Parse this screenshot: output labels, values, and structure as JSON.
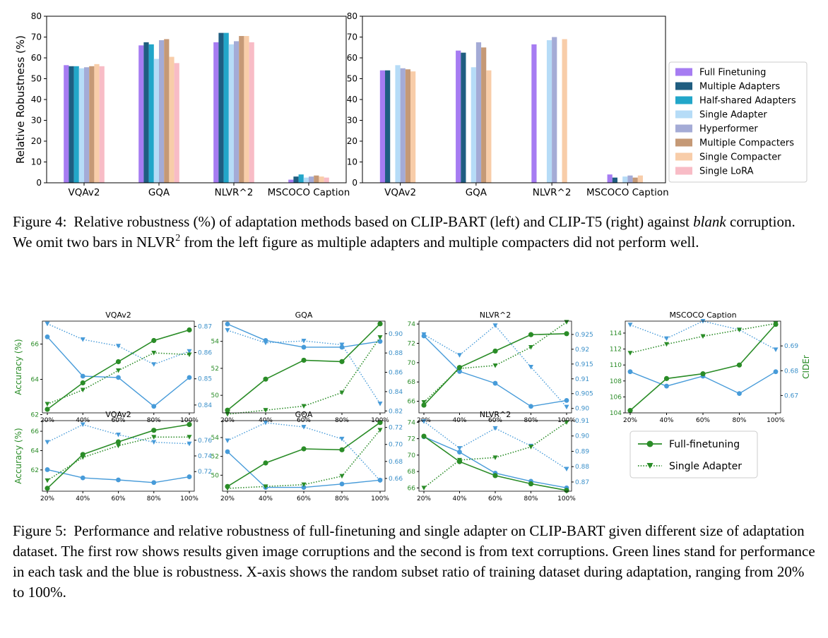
{
  "figure4": {
    "caption": {
      "label": "Figure 4:",
      "part1": "Relative robustness (%) of adaptation methods based on CLIP-BART (left) and CLIP-T5 (right) against ",
      "emph": "blank",
      "part2": " corruption. We omit two bars in NLVR",
      "sup": "2",
      "part3": " from the left figure as multiple adapters and multiple compacters did not perform well."
    }
  },
  "figure5": {
    "caption": {
      "label": "Figure 5:",
      "text": "Performance and relative robustness of full-finetuning and single adapter on CLIP-BART given different size of adaptation dataset. The first row shows results given image corruptions and the second is from text corruptions. Green lines stand for performance in each task and the blue is robustness. X-axis shows the random subset ratio of training dataset during adaptation, ranging from 20% to 100%."
    },
    "legend": [
      "Full-finetuning",
      "Single Adapter"
    ]
  },
  "chart_data": [
    {
      "id": "fig4-left",
      "type": "bar",
      "categories": [
        "VQAv2",
        "GQA",
        "NLVR^2",
        "MSCOCO Caption"
      ],
      "ylabel": "Relative Robustness (%)",
      "ylim": [
        0,
        80
      ],
      "yticks": [
        0,
        10,
        20,
        30,
        40,
        50,
        60,
        70,
        80
      ],
      "series": [
        {
          "name": "Full Finetuning",
          "color": "#a67cf2",
          "values": [
            56.5,
            66,
            67.5,
            1.5
          ]
        },
        {
          "name": "Multiple Adapters",
          "color": "#1f5d80",
          "values": [
            56,
            67.5,
            72,
            3
          ]
        },
        {
          "name": "Half-shared Adapters",
          "color": "#22a6c9",
          "values": [
            56,
            66.5,
            72,
            4
          ]
        },
        {
          "name": "Single Adapter",
          "color": "#b6dcf7",
          "values": [
            55,
            59.5,
            66.5,
            2.5
          ]
        },
        {
          "name": "Hyperformer",
          "color": "#a4abd6",
          "values": [
            55.5,
            68.5,
            68,
            3
          ]
        },
        {
          "name": "Multiple Compacters",
          "color": "#c59976",
          "values": [
            56,
            69,
            70.5,
            3.5
          ]
        },
        {
          "name": "Single Compacter",
          "color": "#f8cda9",
          "values": [
            57,
            60.5,
            70.5,
            3
          ]
        },
        {
          "name": "Single LoRA",
          "color": "#f8bcc6",
          "values": [
            56,
            57.5,
            67.5,
            2.5
          ]
        }
      ]
    },
    {
      "id": "fig4-right",
      "type": "bar",
      "categories": [
        "VQAv2",
        "GQA",
        "NLVR^2",
        "MSCOCO Caption"
      ],
      "ylim": [
        0,
        80
      ],
      "yticks": [
        0,
        10,
        20,
        30,
        40,
        50,
        60,
        70,
        80
      ],
      "legend_position": "right",
      "series": [
        {
          "name": "Full Finetuning",
          "color": "#a67cf2",
          "values": [
            54,
            63.5,
            66.5,
            4
          ]
        },
        {
          "name": "Multiple Adapters",
          "color": "#1f5d80",
          "values": [
            54,
            62.5,
            null,
            2.5
          ]
        },
        {
          "name": "Half-shared Adapters",
          "color": "#22a6c9",
          "values": [
            null,
            null,
            null,
            null
          ]
        },
        {
          "name": "Single Adapter",
          "color": "#b6dcf7",
          "values": [
            56.5,
            55.5,
            68.5,
            3
          ]
        },
        {
          "name": "Hyperformer",
          "color": "#a4abd6",
          "values": [
            55,
            67.5,
            70,
            3.5
          ]
        },
        {
          "name": "Multiple Compacters",
          "color": "#c59976",
          "values": [
            54.5,
            65,
            null,
            2.5
          ]
        },
        {
          "name": "Single Compacter",
          "color": "#f8cda9",
          "values": [
            53.5,
            54,
            69,
            3.5
          ]
        },
        {
          "name": "Single LoRA",
          "color": "#f8bcc6",
          "values": [
            null,
            null,
            null,
            null
          ]
        }
      ]
    },
    {
      "id": "r1-vqa",
      "type": "line",
      "title": "VQAv2",
      "x": [
        "20%",
        "40%",
        "60%",
        "80%",
        "100%"
      ],
      "ylabel": "Accuracy (%)",
      "left": {
        "ylim": [
          62.1,
          67.3
        ],
        "ticks": [
          62,
          64,
          66
        ],
        "full": [
          62.3,
          63.8,
          65.0,
          66.2,
          66.8
        ],
        "single": [
          62.6,
          63.4,
          64.5,
          65.5,
          65.4
        ]
      },
      "right": {
        "ylim": [
          0.837,
          0.872
        ],
        "ticks": [
          0.84,
          0.85,
          0.86,
          0.87
        ],
        "full": [
          0.866,
          0.851,
          0.8505,
          0.8395,
          0.8505
        ],
        "single": [
          0.871,
          0.865,
          0.8625,
          0.8555,
          0.8605
        ]
      }
    },
    {
      "id": "r1-gqa",
      "type": "line",
      "title": "GQA",
      "x": [
        "20%",
        "40%",
        "60%",
        "80%",
        "100%"
      ],
      "left": {
        "ylim": [
          48.7,
          55.5
        ],
        "ticks": [
          50,
          52,
          54
        ],
        "full": [
          48.9,
          51.2,
          52.6,
          52.5,
          55.3
        ],
        "single": [
          48.6,
          48.9,
          49.2,
          50.2,
          54.3
        ]
      },
      "right": {
        "ylim": [
          0.818,
          0.913
        ],
        "ticks": [
          0.82,
          0.84,
          0.86,
          0.88,
          0.9
        ],
        "full": [
          0.91,
          0.893,
          0.886,
          0.886,
          0.892
        ],
        "single": [
          0.9035,
          0.8905,
          0.8925,
          0.8885,
          0.8275
        ]
      }
    },
    {
      "id": "r1-nlvr",
      "type": "line",
      "title": "NLVR^2",
      "x": [
        "20%",
        "40%",
        "60%",
        "80%",
        "100%"
      ],
      "left": {
        "ylim": [
          64.8,
          74.3
        ],
        "ticks": [
          66,
          68,
          70,
          72,
          74
        ],
        "full": [
          65.6,
          69.5,
          71.2,
          72.9,
          73.0
        ],
        "single": [
          65.9,
          69.4,
          69.7,
          71.6,
          74.2
        ]
      },
      "right": {
        "ylim": [
          0.8985,
          0.9295
        ],
        "ticks": [
          0.9,
          0.905,
          0.91,
          0.915,
          0.92,
          0.925
        ],
        "full": [
          0.9245,
          0.9125,
          0.9085,
          0.9007,
          0.9027
        ],
        "single": [
          0.925,
          0.918,
          0.928,
          0.914,
          0.9005
        ]
      }
    },
    {
      "id": "r1-coco",
      "type": "line",
      "title": "MSCOCO Caption",
      "x": [
        "20%",
        "40%",
        "60%",
        "80%",
        "100%"
      ],
      "ylabel": "CIDEr",
      "left": {
        "ylim": [
          104,
          115.5
        ],
        "ticks": [
          104,
          106,
          108,
          110,
          112,
          114
        ],
        "full": [
          104.3,
          108.3,
          108.9,
          110.0,
          115.1
        ],
        "single": [
          111.5,
          112.6,
          113.6,
          114.4,
          115.2
        ]
      },
      "right": {
        "ylim": [
          0.663,
          0.7
        ],
        "ticks": [
          0.67,
          0.68,
          0.69
        ],
        "full": [
          0.6796,
          0.6738,
          0.6778,
          0.6708,
          0.6796
        ],
        "single": [
          0.6985,
          0.693,
          0.7,
          0.6965,
          0.6885
        ]
      }
    },
    {
      "id": "r2-vqa",
      "type": "line",
      "title": "VQAv2",
      "x": [
        "20%",
        "40%",
        "60%",
        "80%",
        "100%"
      ],
      "ylabel": "Accuracy (%)",
      "left": {
        "ylim": [
          59.8,
          67.1
        ],
        "ticks": [
          62,
          64,
          66
        ],
        "full": [
          60.1,
          63.6,
          64.9,
          66.1,
          66.7
        ],
        "single": [
          60.9,
          63.3,
          64.5,
          65.4,
          65.4
        ]
      },
      "right": {
        "ylim": [
          0.695,
          0.785
        ],
        "ticks": [
          0.72,
          0.74,
          0.76
        ],
        "full": [
          0.7225,
          0.712,
          0.7094,
          0.706,
          0.7134
        ],
        "single": [
          0.7575,
          0.78,
          0.767,
          0.7575,
          0.7555
        ]
      }
    },
    {
      "id": "r2-gqa",
      "type": "line",
      "title": "GQA",
      "x": [
        "20%",
        "40%",
        "60%",
        "80%",
        "100%"
      ],
      "left": {
        "ylim": [
          48.3,
          55.8
        ],
        "ticks": [
          50,
          52,
          54
        ],
        "full": [
          48.8,
          51.3,
          52.8,
          52.7,
          55.6
        ],
        "single": [
          48.6,
          48.8,
          49.0,
          49.9,
          54.8
        ]
      },
      "right": {
        "ylim": [
          0.645,
          0.728
        ],
        "ticks": [
          0.66,
          0.68,
          0.7,
          0.72
        ],
        "full": [
          0.6915,
          0.6495,
          0.6495,
          0.6535,
          0.658
        ],
        "single": [
          0.7045,
          0.7255,
          0.7205,
          0.7065,
          0.6575
        ]
      }
    },
    {
      "id": "r2-nlvr",
      "type": "line",
      "title": "NLVR^2",
      "x": [
        "20%",
        "40%",
        "60%",
        "80%",
        "100%"
      ],
      "left": {
        "ylim": [
          65.6,
          74.2
        ],
        "ticks": [
          66,
          68,
          70,
          72,
          74
        ],
        "full": [
          72.3,
          69.2,
          67.5,
          66.5,
          65.7
        ],
        "single": [
          66.0,
          69.4,
          69.7,
          71.0,
          74.0
        ]
      },
      "right": {
        "ylim": [
          0.864,
          0.91
        ],
        "ticks": [
          0.87,
          0.88,
          0.89,
          0.9,
          0.91
        ],
        "full": [
          0.8995,
          0.8895,
          0.8758,
          0.8705,
          0.8662
        ],
        "single": [
          0.9095,
          0.892,
          0.905,
          0.8935,
          0.8785
        ]
      }
    }
  ]
}
